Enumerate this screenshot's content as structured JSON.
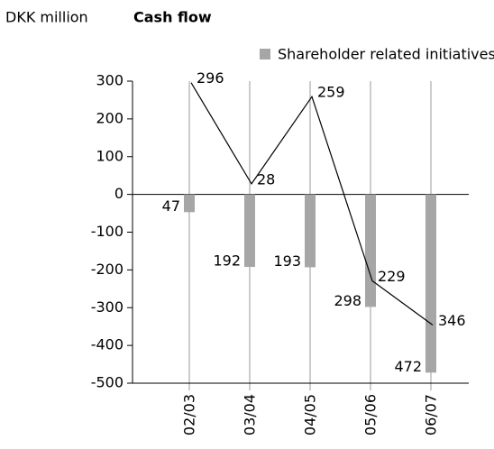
{
  "chart_data": {
    "type": "bar",
    "unit_label": "DKK million",
    "title": "Cash flow",
    "categories": [
      "02/03",
      "03/04",
      "04/05",
      "05/06",
      "06/07"
    ],
    "series": [
      {
        "name": "Shareholder related initiatives",
        "type": "bar",
        "color": "#a6a6a6",
        "values": [
          -47,
          -192,
          -193,
          -298,
          -472
        ],
        "value_labels": [
          "47",
          "192",
          "193",
          "298",
          "472"
        ]
      },
      {
        "type": "line",
        "color": "#000000",
        "values": [
          296,
          28,
          259,
          -229,
          -346
        ],
        "value_labels": [
          "296",
          "28",
          "259",
          "229",
          "346"
        ]
      }
    ],
    "ylim": [
      -500,
      300
    ],
    "yticks": [
      -500,
      -400,
      -300,
      -200,
      -100,
      0,
      100,
      200,
      300
    ],
    "grid": true,
    "legend": "top-right"
  }
}
